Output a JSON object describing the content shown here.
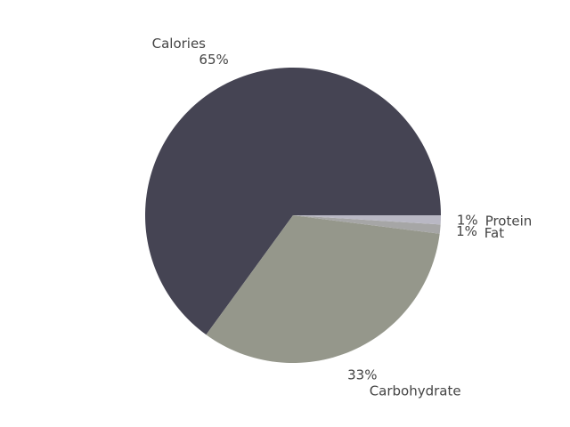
{
  "chart_data": {
    "type": "pie",
    "title": "",
    "slices": [
      {
        "label": "Calories",
        "value": 65,
        "pct_label": "65%",
        "color": "#454453"
      },
      {
        "label": "Carbohydrate",
        "value": 33,
        "pct_label": "33%",
        "color": "#95978b"
      },
      {
        "label": "Fat",
        "value": 1,
        "pct_label": "1%",
        "color": "#a6a6a6"
      },
      {
        "label": "Protein",
        "value": 1,
        "pct_label": "1%",
        "color": "#b9b8c4"
      }
    ],
    "start_angle_deg": 0,
    "direction": "counterclockwise",
    "legend": "none"
  }
}
